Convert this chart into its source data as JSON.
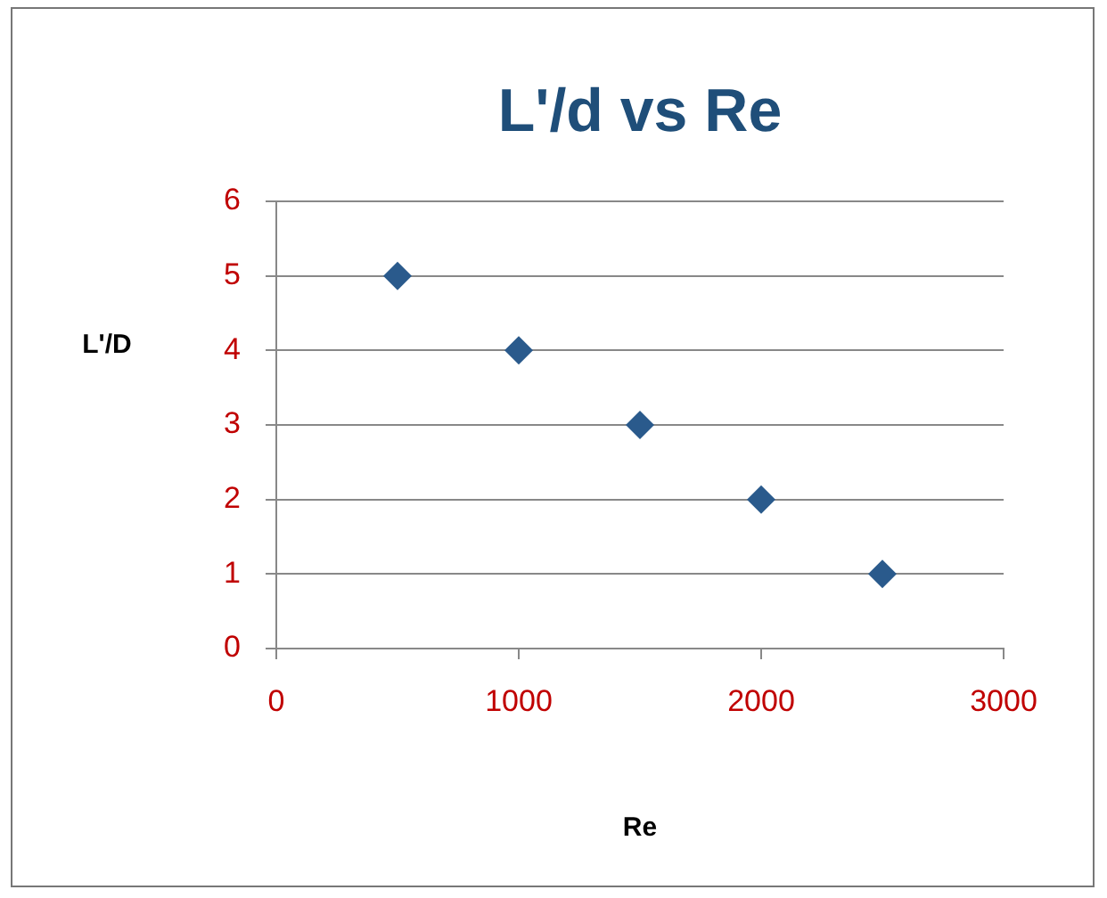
{
  "chart_data": {
    "type": "scatter",
    "title": "L'/d vs Re",
    "xlabel": "Re",
    "ylabel": "L'/D",
    "x": [
      500,
      1000,
      1500,
      2000,
      2500
    ],
    "series": [
      {
        "color": "#2a5a8c",
        "values": [
          5,
          4,
          3,
          2,
          1
        ]
      }
    ],
    "xlim": [
      0,
      3000
    ],
    "xticks": [
      0,
      1000,
      2000,
      3000
    ],
    "ylim": [
      0,
      6
    ],
    "yticks": [
      0,
      1,
      2,
      3,
      4,
      5,
      6
    ],
    "grid": "y",
    "legend": false,
    "marker": "diamond"
  }
}
